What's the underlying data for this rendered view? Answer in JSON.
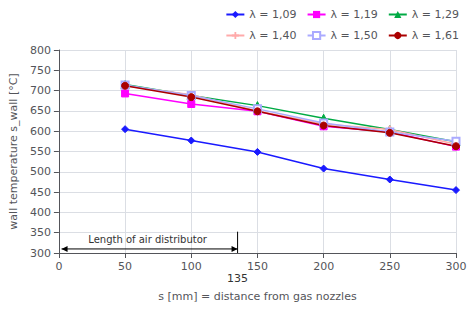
{
  "chart_data": {
    "type": "line",
    "x": [
      50,
      100,
      150,
      200,
      250,
      300
    ],
    "series": [
      {
        "name": "λ = 1,09",
        "color": "#1a1aff",
        "marker": "diamond",
        "values": [
          605,
          577,
          549,
          508,
          481,
          455
        ]
      },
      {
        "name": "λ = 1,19",
        "color": "#ff00ff",
        "marker": "square",
        "values": [
          693,
          667,
          649,
          612,
          598,
          562
        ]
      },
      {
        "name": "λ = 1,29",
        "color": "#00aa44",
        "marker": "triangle",
        "values": [
          715,
          688,
          663,
          632,
          604,
          574
        ]
      },
      {
        "name": "λ = 1,40",
        "color": "#ffaaaa",
        "marker": "plus",
        "values": [
          712,
          690,
          650,
          618,
          604,
          568
        ]
      },
      {
        "name": "λ = 1,50",
        "color": "#aaaaff",
        "marker": "open-square",
        "values": [
          714,
          688,
          655,
          620,
          598,
          575
        ]
      },
      {
        "name": "λ = 1,61",
        "color": "#aa0000",
        "marker": "circle",
        "values": [
          712,
          684,
          649,
          614,
          596,
          563
        ]
      }
    ],
    "xlim": [
      0,
      300
    ],
    "ylim": [
      300,
      800
    ],
    "xticks": [
      0,
      50,
      100,
      150,
      200,
      250,
      300
    ],
    "yticks": [
      300,
      350,
      400,
      450,
      500,
      550,
      600,
      650,
      700,
      750,
      800
    ],
    "xlabel": "s [mm] = distance from gas nozzles",
    "ylabel": "wall temperature s_wall [°C]",
    "annotations": [
      {
        "text": "Length of air distributor",
        "x": 67,
        "y": 320
      },
      {
        "text": "135",
        "x": 135,
        "y": 300
      }
    ],
    "arrow": {
      "x": [
        2,
        135
      ],
      "y": 310
    },
    "vline": {
      "x": 135,
      "y": [
        300,
        352.5
      ]
    },
    "grid": true,
    "legend": "upper right"
  }
}
